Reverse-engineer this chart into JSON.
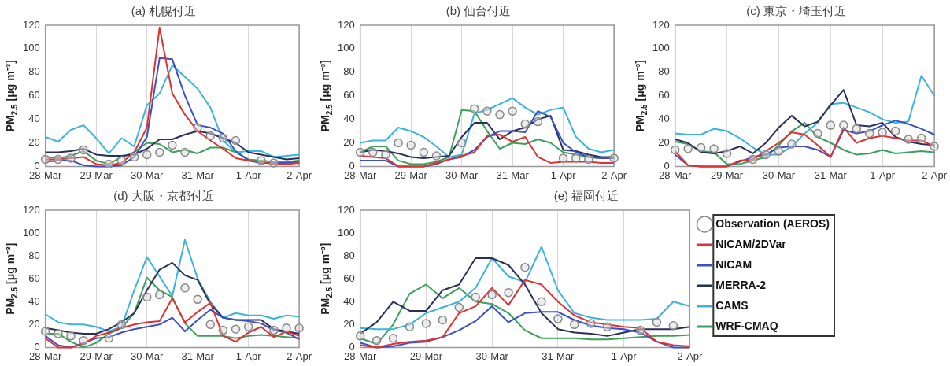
{
  "chart_data": [
    {
      "type": "line",
      "title": "(a) 札幌付近",
      "ylabel": "PM$_{2.5}$ [μg m⁻³]",
      "categories": [
        "28-Mar",
        null,
        null,
        null,
        "29-Mar",
        null,
        null,
        null,
        "30-Mar",
        null,
        null,
        null,
        "31-Mar",
        null,
        null,
        null,
        "1-Apr",
        null,
        null,
        null,
        "2-Apr"
      ],
      "ylim": [
        0,
        120
      ],
      "yticks": [
        0,
        20,
        40,
        60,
        80,
        100,
        120
      ],
      "grid": "x",
      "series": [
        {
          "type": "scatter",
          "marker": "circle",
          "color": "#888888",
          "values": [
            6,
            6,
            7,
            14,
            null,
            2,
            5,
            8,
            10,
            12,
            18,
            12,
            33,
            26,
            24,
            22,
            null,
            5,
            3,
            null,
            null
          ]
        },
        {
          "color": "#e0302f",
          "values": [
            6,
            6,
            7,
            8,
            2,
            1,
            3,
            12,
            33,
            118,
            62,
            44,
            30,
            22,
            15,
            7,
            5,
            4,
            2,
            2,
            3
          ]
        },
        {
          "color": "#3a4fc8",
          "values": [
            4,
            5,
            5,
            1,
            0,
            0,
            1,
            8,
            25,
            92,
            91,
            60,
            35,
            33,
            28,
            13,
            5,
            3,
            3,
            3,
            4
          ]
        },
        {
          "color": "#2a2f5a",
          "values": [
            12,
            12,
            13,
            15,
            10,
            9,
            9,
            10,
            15,
            23,
            23,
            27,
            30,
            28,
            24,
            20,
            12,
            10,
            8,
            6,
            7
          ]
        },
        {
          "color": "#3ab4dc",
          "values": [
            25,
            21,
            31,
            35,
            24,
            11,
            24,
            17,
            52,
            62,
            86,
            76,
            66,
            50,
            22,
            12,
            13,
            13,
            8,
            9,
            10
          ]
        },
        {
          "color": "#3aa05a",
          "values": [
            8,
            7,
            9,
            13,
            5,
            2,
            8,
            12,
            20,
            19,
            12,
            14,
            11,
            16,
            16,
            12,
            6,
            5,
            4,
            4,
            5
          ]
        }
      ]
    },
    {
      "type": "line",
      "title": "(b) 仙台付近",
      "ylabel": "PM$_{2.5}$ [μg m⁻³]",
      "categories": [
        "28-Mar",
        null,
        null,
        null,
        "29-Mar",
        null,
        null,
        null,
        "30-Mar",
        null,
        null,
        null,
        "31-Mar",
        null,
        null,
        null,
        "1-Apr",
        null,
        null,
        null,
        "2-Apr"
      ],
      "ylim": [
        0,
        120
      ],
      "yticks": [
        0,
        20,
        40,
        60,
        80,
        100,
        120
      ],
      "grid": "x",
      "series": [
        {
          "type": "scatter",
          "marker": "circle",
          "color": "#888888",
          "values": [
            12,
            12,
            10,
            20,
            18,
            12,
            9,
            null,
            20,
            49,
            47,
            44,
            47,
            36,
            38,
            null,
            7,
            7,
            6,
            null,
            7
          ]
        },
        {
          "color": "#e0302f",
          "values": [
            9,
            8,
            7,
            0,
            0,
            0,
            3,
            6,
            9,
            12,
            26,
            27,
            21,
            25,
            8,
            3,
            4,
            4,
            4,
            3,
            3
          ]
        },
        {
          "color": "#3a4fc8",
          "values": [
            5,
            5,
            5,
            0,
            0,
            0,
            2,
            6,
            8,
            14,
            25,
            30,
            30,
            29,
            47,
            42,
            20,
            12,
            8,
            7,
            7
          ]
        },
        {
          "color": "#2a2f5a",
          "values": [
            12,
            14,
            13,
            11,
            8,
            7,
            8,
            9,
            25,
            37,
            37,
            23,
            30,
            33,
            40,
            43,
            14,
            13,
            10,
            8,
            8
          ]
        },
        {
          "color": "#3ab4dc",
          "values": [
            20,
            22,
            22,
            33,
            30,
            25,
            17,
            8,
            10,
            45,
            48,
            53,
            58,
            50,
            44,
            48,
            50,
            25,
            15,
            12,
            14
          ]
        },
        {
          "color": "#3aa05a",
          "values": [
            12,
            17,
            17,
            5,
            2,
            2,
            4,
            8,
            48,
            47,
            30,
            15,
            20,
            19,
            23,
            20,
            12,
            10,
            8,
            7,
            7
          ]
        }
      ]
    },
    {
      "type": "line",
      "title": "(c) 東京・埼玉付近",
      "ylabel": "PM$_{2.5}$ [μg m⁻³]",
      "categories": [
        "28-Mar",
        null,
        null,
        null,
        "29-Mar",
        null,
        null,
        null,
        "30-Mar",
        null,
        null,
        null,
        "31-Mar",
        null,
        null,
        null,
        "1-Apr",
        null,
        null,
        null,
        "2-Apr"
      ],
      "ylim": [
        0,
        120
      ],
      "yticks": [
        0,
        20,
        40,
        60,
        80,
        100,
        120
      ],
      "grid": "x",
      "series": [
        {
          "type": "scatter",
          "marker": "circle",
          "color": "#888888",
          "values": [
            14,
            15,
            16,
            15,
            11,
            null,
            6,
            10,
            13,
            19,
            null,
            28,
            35,
            35,
            32,
            28,
            29,
            30,
            23,
            24,
            17
          ]
        },
        {
          "color": "#e0302f",
          "values": [
            13,
            1,
            0,
            0,
            0,
            5,
            6,
            13,
            20,
            29,
            27,
            18,
            8,
            33,
            20,
            24,
            26,
            24,
            22,
            22,
            17
          ]
        },
        {
          "color": "#3a4fc8",
          "values": [
            10,
            1,
            0,
            0,
            0,
            4,
            8,
            10,
            16,
            17,
            17,
            14,
            8,
            31,
            28,
            30,
            35,
            39,
            36,
            32,
            27
          ]
        },
        {
          "color": "#2a2f5a",
          "values": [
            23,
            20,
            12,
            11,
            13,
            17,
            11,
            20,
            33,
            43,
            34,
            38,
            52,
            65,
            35,
            34,
            37,
            25,
            21,
            19,
            18
          ]
        },
        {
          "color": "#3ab4dc",
          "values": [
            28,
            27,
            27,
            32,
            30,
            24,
            16,
            10,
            10,
            17,
            28,
            37,
            53,
            54,
            50,
            46,
            40,
            37,
            38,
            77,
            60
          ]
        },
        {
          "color": "#3aa05a",
          "values": [
            21,
            19,
            13,
            12,
            2,
            2,
            5,
            8,
            18,
            30,
            37,
            25,
            20,
            14,
            10,
            11,
            14,
            11,
            12,
            13,
            12
          ]
        }
      ]
    },
    {
      "type": "line",
      "title": "(d) 大阪・京都付近",
      "ylabel": "PM$_{2.5}$ [μg m⁻³]",
      "categories": [
        "28-Mar",
        null,
        null,
        null,
        "29-Mar",
        null,
        null,
        null,
        "30-Mar",
        null,
        null,
        null,
        "31-Mar",
        null,
        null,
        null,
        "1-Apr",
        null,
        null,
        null,
        "2-Apr"
      ],
      "ylim": [
        0,
        120
      ],
      "yticks": [
        0,
        20,
        40,
        60,
        80,
        100,
        120
      ],
      "grid": "x",
      "series": [
        {
          "type": "scatter",
          "marker": "circle",
          "color": "#888888",
          "values": [
            14,
            12,
            10,
            6,
            null,
            8,
            20,
            null,
            44,
            46,
            null,
            52,
            42,
            20,
            15,
            16,
            18,
            null,
            15,
            17,
            17
          ]
        },
        {
          "color": "#e0302f",
          "values": [
            8,
            0,
            0,
            3,
            10,
            13,
            17,
            20,
            22,
            23,
            43,
            22,
            31,
            39,
            10,
            5,
            13,
            18,
            9,
            14,
            10
          ]
        },
        {
          "color": "#3a4fc8",
          "values": [
            10,
            2,
            0,
            4,
            8,
            9,
            13,
            16,
            18,
            20,
            26,
            14,
            24,
            33,
            26,
            24,
            23,
            21,
            15,
            13,
            7
          ]
        },
        {
          "color": "#2a2f5a",
          "values": [
            17,
            15,
            13,
            12,
            12,
            16,
            22,
            30,
            50,
            68,
            74,
            63,
            59,
            38,
            26,
            24,
            24,
            24,
            16,
            14,
            12
          ]
        },
        {
          "color": "#3ab4dc",
          "values": [
            29,
            22,
            20,
            20,
            18,
            14,
            18,
            50,
            79,
            62,
            45,
            94,
            60,
            40,
            26,
            30,
            28,
            28,
            25,
            28,
            27
          ]
        },
        {
          "color": "#3aa05a",
          "values": [
            12,
            12,
            5,
            0,
            4,
            12,
            17,
            30,
            61,
            50,
            44,
            21,
            10,
            10,
            10,
            8,
            10,
            11,
            10,
            9,
            8
          ]
        }
      ]
    },
    {
      "type": "line",
      "title": "(e) 福岡付近",
      "ylabel": "PM$_{2.5}$ [μg m⁻³]",
      "categories": [
        "28-Mar",
        null,
        null,
        null,
        "29-Mar",
        null,
        null,
        null,
        "30-Mar",
        null,
        null,
        null,
        "31-Mar",
        null,
        null,
        null,
        "1-Apr",
        null,
        null,
        null,
        "2-Apr"
      ],
      "ylim": [
        0,
        120
      ],
      "yticks": [
        0,
        20,
        40,
        60,
        80,
        100,
        120
      ],
      "grid": "x",
      "legend": "right",
      "series": [
        {
          "name": "Observation (AEROS)",
          "type": "scatter",
          "marker": "circle",
          "color": "#888888",
          "values": [
            10,
            6,
            8,
            18,
            21,
            24,
            35,
            44,
            46,
            48,
            70,
            40,
            25,
            20,
            21,
            18,
            null,
            15,
            22,
            19,
            null
          ]
        },
        {
          "name": "NICAM/2DVar",
          "color": "#e0302f",
          "values": [
            2,
            0,
            3,
            5,
            6,
            9,
            30,
            36,
            52,
            37,
            59,
            55,
            40,
            28,
            22,
            20,
            18,
            17,
            5,
            2,
            1
          ]
        },
        {
          "name": "NICAM",
          "color": "#3a4fc8",
          "values": [
            4,
            0,
            1,
            4,
            5,
            9,
            15,
            23,
            36,
            22,
            30,
            31,
            31,
            24,
            19,
            17,
            16,
            13,
            5,
            0,
            0
          ]
        },
        {
          "name": "MERRA-2",
          "color": "#2a2f5a",
          "values": [
            12,
            22,
            40,
            32,
            32,
            50,
            55,
            78,
            78,
            72,
            55,
            30,
            16,
            13,
            12,
            10,
            13,
            16,
            16,
            16,
            18
          ]
        },
        {
          "name": "CAMS",
          "color": "#3ab4dc",
          "values": [
            17,
            16,
            16,
            20,
            30,
            35,
            40,
            52,
            78,
            62,
            57,
            88,
            50,
            30,
            26,
            24,
            24,
            24,
            25,
            40,
            36
          ]
        },
        {
          "name": "WRF-CMAQ",
          "color": "#3aa05a",
          "values": [
            8,
            3,
            20,
            47,
            55,
            43,
            52,
            40,
            38,
            30,
            15,
            8,
            8,
            8,
            7,
            7,
            8,
            9,
            10,
            10,
            11
          ]
        }
      ]
    }
  ]
}
